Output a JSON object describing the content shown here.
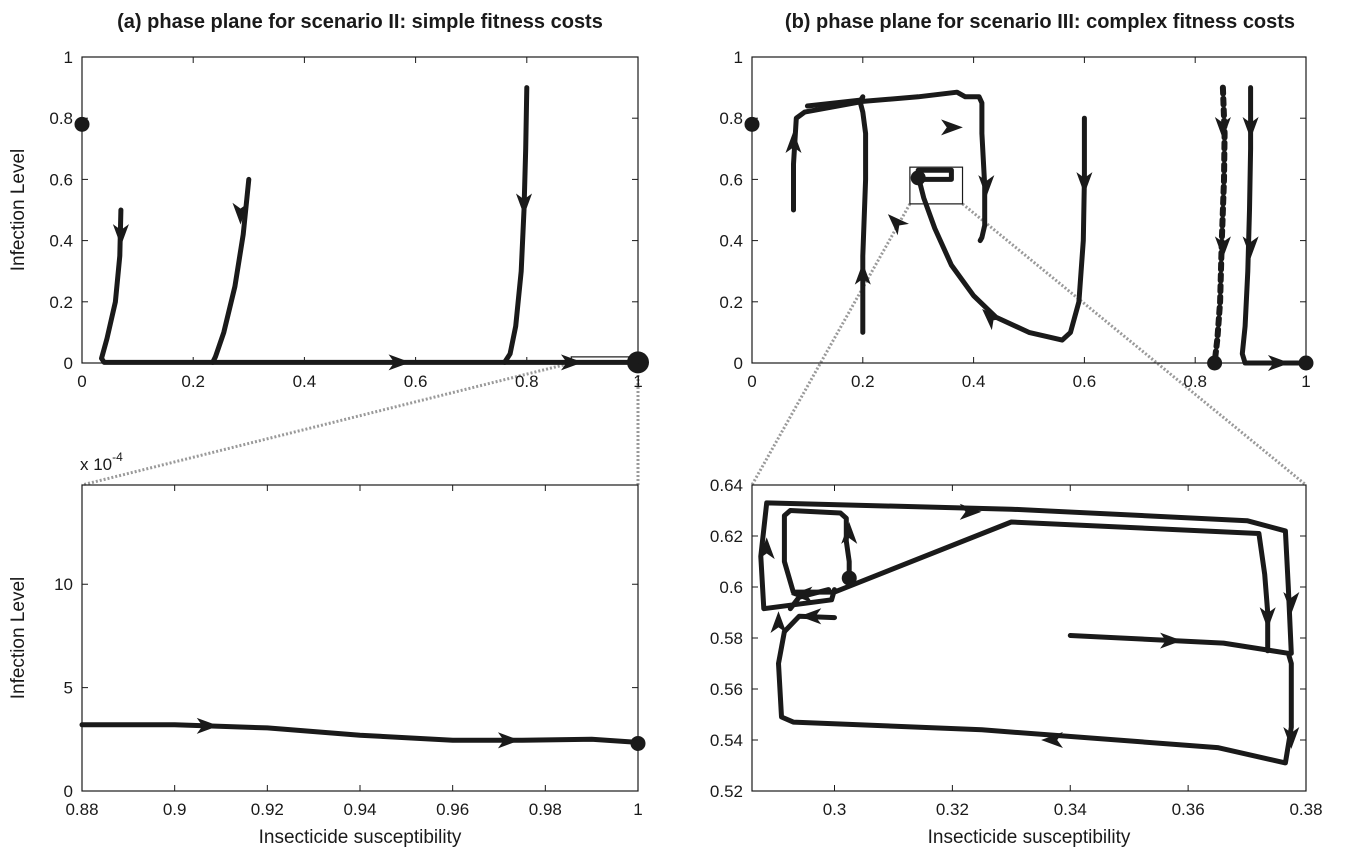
{
  "colors": {
    "ink": "#1a1a1a",
    "zoom_connector": "#9a9a9a",
    "background": "#ffffff"
  },
  "chart_data": [
    {
      "type": "line",
      "panel": "a-top",
      "title": "(a) phase plane for scenario II: simple fitness costs",
      "xlabel": "",
      "ylabel": "Infection Level",
      "xlim": [
        0,
        1
      ],
      "ylim": [
        0,
        1
      ],
      "xticks": [
        0,
        0.2,
        0.4,
        0.6,
        0.8,
        1
      ],
      "xtick_labels": [
        "0",
        "0.2",
        "0.4",
        "0.6",
        "0.8",
        "1"
      ],
      "yticks": [
        0,
        0.2,
        0.4,
        0.6,
        0.8,
        1
      ],
      "ytick_labels": [
        "0",
        "0.2",
        "0.4",
        "0.6",
        "0.8",
        "1"
      ],
      "grid": false,
      "series": [
        {
          "style": "solid",
          "x": [
            0.07,
            0.068,
            0.06,
            0.045,
            0.035,
            0.04,
            0.3,
            1.0
          ],
          "y": [
            0.5,
            0.35,
            0.2,
            0.08,
            0.015,
            0.002,
            0.002,
            0.002
          ]
        },
        {
          "style": "solid",
          "x": [
            0.3,
            0.29,
            0.275,
            0.255,
            0.24,
            0.235
          ],
          "y": [
            0.6,
            0.42,
            0.25,
            0.1,
            0.02,
            0.002
          ]
        },
        {
          "style": "solid",
          "x": [
            0.8,
            0.798,
            0.795,
            0.79,
            0.78,
            0.77,
            0.76
          ],
          "y": [
            0.9,
            0.7,
            0.5,
            0.3,
            0.12,
            0.03,
            0.002
          ]
        }
      ],
      "arrows": [
        {
          "x": 0.07,
          "y": 0.42,
          "dir": "down"
        },
        {
          "x": 0.285,
          "y": 0.49,
          "dir": "down"
        },
        {
          "x": 0.795,
          "y": 0.52,
          "dir": "down"
        },
        {
          "x": 0.57,
          "y": 0.002,
          "dir": "right"
        },
        {
          "x": 0.88,
          "y": 0.002,
          "dir": "right"
        }
      ],
      "points": [
        {
          "x": 0,
          "y": 0.78,
          "size": "medium"
        },
        {
          "x": 1,
          "y": 0.002,
          "size": "large"
        }
      ],
      "zoom_box": {
        "x": [
          0.88,
          1.0
        ],
        "y": [
          0.0,
          0.02
        ]
      }
    },
    {
      "type": "line",
      "panel": "a-bottom",
      "title": "",
      "xlabel": "Insecticide susceptibility",
      "ylabel": "Infection Level",
      "y_multiplier_label": "x 10",
      "y_multiplier_exponent": "-4",
      "xlim": [
        0.88,
        1.0
      ],
      "ylim": [
        0,
        14.8
      ],
      "xticks": [
        0.88,
        0.9,
        0.92,
        0.94,
        0.96,
        0.98,
        1
      ],
      "xtick_labels": [
        "0.88",
        "0.9",
        "0.92",
        "0.94",
        "0.96",
        "0.98",
        "1"
      ],
      "yticks": [
        0,
        5,
        10
      ],
      "ytick_labels": [
        "0",
        "5",
        "10"
      ],
      "grid": false,
      "series": [
        {
          "style": "solid",
          "x": [
            0.88,
            0.9,
            0.92,
            0.94,
            0.96,
            0.975,
            0.99,
            1.0
          ],
          "y": [
            3.2,
            3.2,
            3.05,
            2.7,
            2.45,
            2.45,
            2.5,
            2.35
          ]
        }
      ],
      "arrows": [
        {
          "x": 0.907,
          "y": 3.15,
          "dir": "right"
        },
        {
          "x": 0.972,
          "y": 2.45,
          "dir": "right"
        }
      ],
      "points": [
        {
          "x": 1.0,
          "y": 2.3,
          "size": "medium"
        }
      ]
    },
    {
      "type": "line",
      "panel": "b-top",
      "title": "(b) phase plane for scenario III: complex fitness costs",
      "xlabel": "",
      "ylabel": "",
      "xlim": [
        0,
        1
      ],
      "ylim": [
        0,
        1
      ],
      "xticks": [
        0,
        0.2,
        0.4,
        0.6,
        0.8,
        1
      ],
      "xtick_labels": [
        "0",
        "0.2",
        "0.4",
        "0.6",
        "0.8",
        "1"
      ],
      "yticks": [
        0,
        0.2,
        0.4,
        0.6,
        0.8,
        1
      ],
      "ytick_labels": [
        "0",
        "0.2",
        "0.4",
        "0.6",
        "0.8",
        "1"
      ],
      "grid": false,
      "series": [
        {
          "style": "solid",
          "x": [
            0.075,
            0.075,
            0.08,
            0.095,
            0.2,
            0.3,
            0.37,
            0.385,
            0.41,
            0.415,
            0.415,
            0.42,
            0.42,
            0.415,
            0.412
          ],
          "y": [
            0.5,
            0.65,
            0.8,
            0.82,
            0.855,
            0.87,
            0.885,
            0.87,
            0.87,
            0.85,
            0.75,
            0.58,
            0.45,
            0.41,
            0.4
          ]
        },
        {
          "style": "solid",
          "x": [
            0.1,
            0.2
          ],
          "y": [
            0.84,
            0.86
          ]
        },
        {
          "style": "solid",
          "x": [
            0.2,
            0.2,
            0.205,
            0.205,
            0.2,
            0.195,
            0.2
          ],
          "y": [
            0.1,
            0.35,
            0.6,
            0.75,
            0.82,
            0.855,
            0.87
          ]
        },
        {
          "style": "solid",
          "x": [
            0.6,
            0.6,
            0.598,
            0.59,
            0.575,
            0.56,
            0.5,
            0.44,
            0.4,
            0.36,
            0.33,
            0.31,
            0.3
          ],
          "y": [
            0.8,
            0.6,
            0.4,
            0.2,
            0.1,
            0.075,
            0.1,
            0.15,
            0.22,
            0.32,
            0.44,
            0.54,
            0.61
          ]
        },
        {
          "style": "solid",
          "x": [
            0.3,
            0.36,
            0.36,
            0.3,
            0.305
          ],
          "y": [
            0.6,
            0.6,
            0.63,
            0.63,
            0.6
          ]
        },
        {
          "style": "dashed",
          "x": [
            0.85,
            0.853,
            0.852,
            0.848,
            0.845,
            0.84,
            0.835
          ],
          "y": [
            0.9,
            0.75,
            0.6,
            0.4,
            0.2,
            0.08,
            0.0
          ]
        },
        {
          "style": "solid",
          "x": [
            0.9,
            0.9,
            0.898,
            0.895,
            0.89,
            0.885,
            0.89,
            1.0
          ],
          "y": [
            0.9,
            0.7,
            0.5,
            0.3,
            0.12,
            0.03,
            0.0,
            0.0
          ]
        }
      ],
      "arrows": [
        {
          "x": 0.075,
          "y": 0.72,
          "dir": "up"
        },
        {
          "x": 0.2,
          "y": 0.29,
          "dir": "up"
        },
        {
          "x": 0.26,
          "y": 0.46,
          "dir": "up-left"
        },
        {
          "x": 0.36,
          "y": 0.77,
          "dir": "right"
        },
        {
          "x": 0.423,
          "y": 0.58,
          "dir": "down"
        },
        {
          "x": 0.6,
          "y": 0.59,
          "dir": "down"
        },
        {
          "x": 0.43,
          "y": 0.15,
          "dir": "up-left"
        },
        {
          "x": 0.85,
          "y": 0.77,
          "dir": "down"
        },
        {
          "x": 0.85,
          "y": 0.38,
          "dir": "down"
        },
        {
          "x": 0.9,
          "y": 0.77,
          "dir": "down"
        },
        {
          "x": 0.9,
          "y": 0.38,
          "dir": "down"
        },
        {
          "x": 0.95,
          "y": 0.0,
          "dir": "right"
        }
      ],
      "points": [
        {
          "x": 0,
          "y": 0.78,
          "size": "medium"
        },
        {
          "x": 0.3,
          "y": 0.605,
          "size": "medium"
        },
        {
          "x": 0.835,
          "y": 0.0,
          "size": "medium"
        },
        {
          "x": 1.0,
          "y": 0.0,
          "size": "medium"
        }
      ],
      "zoom_box": {
        "x": [
          0.285,
          0.38
        ],
        "y": [
          0.52,
          0.64
        ]
      }
    },
    {
      "type": "line",
      "panel": "b-bottom",
      "title": "",
      "xlabel": "Insecticide susceptibility",
      "ylabel": "",
      "xlim": [
        0.286,
        0.38
      ],
      "ylim": [
        0.52,
        0.64
      ],
      "xticks": [
        0.3,
        0.32,
        0.34,
        0.36,
        0.38
      ],
      "xtick_labels": [
        "0.3",
        "0.32",
        "0.34",
        "0.36",
        "0.38"
      ],
      "yticks": [
        0.52,
        0.54,
        0.56,
        0.58,
        0.6,
        0.62,
        0.64
      ],
      "ytick_labels": [
        "0.52",
        "0.54",
        "0.56",
        "0.58",
        "0.6",
        "0.62",
        "0.64"
      ],
      "grid": false,
      "series": [
        {
          "style": "solid",
          "x": [
            0.2915,
            0.2905,
            0.291,
            0.293,
            0.325,
            0.365,
            0.3765,
            0.3775,
            0.3775,
            0.377,
            0.366,
            0.34
          ],
          "y": [
            0.5825,
            0.57,
            0.549,
            0.547,
            0.544,
            0.537,
            0.531,
            0.545,
            0.57,
            0.574,
            0.578,
            0.581
          ]
        },
        {
          "style": "solid",
          "x": [
            0.2915,
            0.294,
            0.3
          ],
          "y": [
            0.5825,
            0.5885,
            0.588
          ]
        },
        {
          "style": "solid",
          "x": [
            0.2925,
            0.294,
            0.299
          ],
          "y": [
            0.5915,
            0.596,
            0.599
          ]
        },
        {
          "style": "solid",
          "x": [
            0.3,
            0.2995,
            0.288,
            0.2875,
            0.2885,
            0.33,
            0.37,
            0.3765,
            0.377,
            0.3775
          ],
          "y": [
            0.599,
            0.595,
            0.5915,
            0.612,
            0.633,
            0.6305,
            0.626,
            0.622,
            0.6,
            0.574
          ]
        },
        {
          "style": "solid",
          "x": [
            0.3025,
            0.3025,
            0.302,
            0.302,
            0.301,
            0.2925,
            0.2915,
            0.2915,
            0.293,
            0.3,
            0.33,
            0.372,
            0.373,
            0.3735,
            0.3735
          ],
          "y": [
            0.605,
            0.61,
            0.618,
            0.627,
            0.629,
            0.63,
            0.628,
            0.61,
            0.598,
            0.598,
            0.6255,
            0.621,
            0.605,
            0.59,
            0.575
          ]
        }
      ],
      "arrows": [
        {
          "x": 0.2885,
          "y": 0.615,
          "dir": "up"
        },
        {
          "x": 0.3025,
          "y": 0.621,
          "dir": "up"
        },
        {
          "x": 0.2905,
          "y": 0.586,
          "dir": "up"
        },
        {
          "x": 0.2945,
          "y": 0.597,
          "dir": "left"
        },
        {
          "x": 0.296,
          "y": 0.5885,
          "dir": "left"
        },
        {
          "x": 0.323,
          "y": 0.6295,
          "dir": "right"
        },
        {
          "x": 0.357,
          "y": 0.579,
          "dir": "right"
        },
        {
          "x": 0.3735,
          "y": 0.588,
          "dir": "down"
        },
        {
          "x": 0.3775,
          "y": 0.594,
          "dir": "down"
        },
        {
          "x": 0.3775,
          "y": 0.541,
          "dir": "down"
        },
        {
          "x": 0.337,
          "y": 0.54,
          "dir": "left"
        }
      ],
      "points": [
        {
          "x": 0.3025,
          "y": 0.6035,
          "size": "medium"
        }
      ]
    }
  ]
}
